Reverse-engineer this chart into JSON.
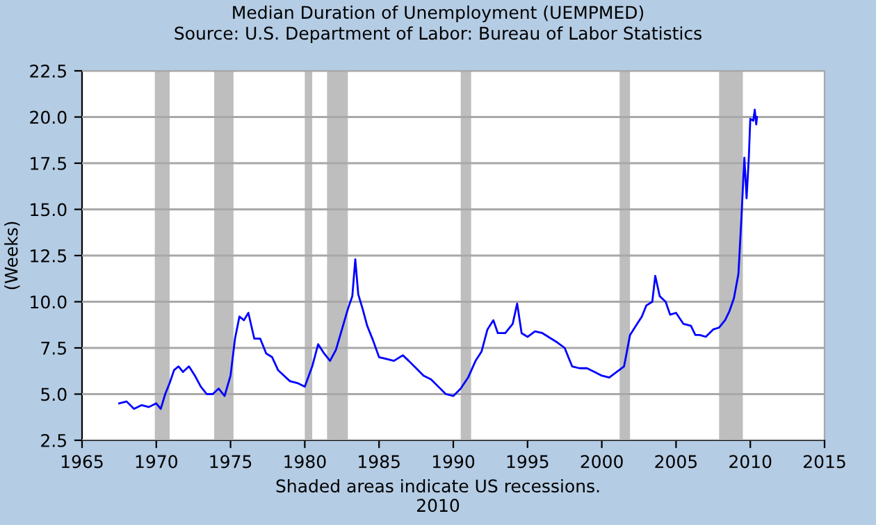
{
  "chart_data": {
    "type": "line",
    "title": "Median Duration of Unemployment (UEMPMED)",
    "subtitle": "Source: U.S. Department of Labor: Bureau of Labor Statistics",
    "ylabel": "(Weeks)",
    "annotations": [
      "Shaded areas indicate US recessions.",
      "2010"
    ],
    "xlim": [
      1965,
      2015
    ],
    "xticks": [
      1965,
      1970,
      1975,
      1980,
      1985,
      1990,
      1995,
      2000,
      2005,
      2010,
      2015
    ],
    "ylim": [
      2.5,
      22.5
    ],
    "yticks": [
      2.5,
      {
        "value": 5,
        "label": "5.0"
      },
      7.5,
      {
        "value": 10,
        "label": "10.0"
      },
      12.5,
      {
        "value": 15,
        "label": "15.0"
      },
      17.5,
      {
        "value": 20,
        "label": "20.0"
      },
      22.5
    ],
    "grid": "y",
    "legend": false,
    "bands": [
      {
        "axis": "x",
        "from": 1969.9,
        "to": 1970.9,
        "color": "#bebebe"
      },
      {
        "axis": "x",
        "from": 1973.9,
        "to": 1975.2,
        "color": "#bebebe"
      },
      {
        "axis": "x",
        "from": 1980.0,
        "to": 1980.5,
        "color": "#bebebe"
      },
      {
        "axis": "x",
        "from": 1981.5,
        "to": 1982.9,
        "color": "#bebebe"
      },
      {
        "axis": "x",
        "from": 1990.5,
        "to": 1991.2,
        "color": "#bebebe"
      },
      {
        "axis": "x",
        "from": 2001.2,
        "to": 2001.9,
        "color": "#bebebe"
      },
      {
        "axis": "x",
        "from": 2007.9,
        "to": 2009.5,
        "color": "#bebebe"
      }
    ],
    "series": [
      {
        "color": "#0000ff",
        "x": [
          1967.5,
          1968,
          1968.5,
          1969,
          1969.5,
          1970,
          1970.3,
          1970.6,
          1970.9,
          1971.2,
          1971.5,
          1971.8,
          1972.2,
          1972.6,
          1973,
          1973.4,
          1973.8,
          1974.2,
          1974.6,
          1975,
          1975.3,
          1975.6,
          1975.9,
          1976.2,
          1976.6,
          1977,
          1977.4,
          1977.8,
          1978.2,
          1978.6,
          1979,
          1979.5,
          1980,
          1980.5,
          1980.9,
          1981.3,
          1981.7,
          1982.1,
          1982.5,
          1982.9,
          1983.2,
          1983.4,
          1983.6,
          1983.9,
          1984.2,
          1984.6,
          1985,
          1985.5,
          1986,
          1986.6,
          1987,
          1987.5,
          1988,
          1988.5,
          1989,
          1989.5,
          1990,
          1990.5,
          1991,
          1991.5,
          1991.9,
          1992.3,
          1992.7,
          1993,
          1993.5,
          1994,
          1994.3,
          1994.6,
          1995,
          1995.5,
          1996,
          1996.6,
          1997,
          1997.5,
          1998,
          1998.5,
          1999,
          1999.5,
          2000,
          2000.5,
          2001,
          2001.5,
          2001.9,
          2002.3,
          2002.7,
          2003,
          2003.4,
          2003.6,
          2003.9,
          2004.3,
          2004.6,
          2005,
          2005.5,
          2006,
          2006.3,
          2006.6,
          2007,
          2007.5,
          2007.9,
          2008.3,
          2008.6,
          2008.9,
          2009.2,
          2009.4,
          2009.6,
          2009.75,
          2009.9,
          2010.0,
          2010.2,
          2010.3,
          2010.4,
          2010.45
        ],
        "values": [
          4.5,
          4.6,
          4.2,
          4.4,
          4.3,
          4.5,
          4.2,
          5.0,
          5.6,
          6.3,
          6.5,
          6.2,
          6.5,
          6.0,
          5.4,
          5.0,
          5.0,
          5.3,
          4.9,
          6.0,
          8.0,
          9.2,
          9.0,
          9.4,
          8.0,
          8.0,
          7.2,
          7.0,
          6.3,
          6.0,
          5.7,
          5.6,
          5.4,
          6.5,
          7.7,
          7.2,
          6.8,
          7.4,
          8.5,
          9.6,
          10.3,
          12.3,
          10.4,
          9.6,
          8.7,
          7.9,
          7.0,
          6.9,
          6.8,
          7.1,
          6.8,
          6.4,
          6.0,
          5.8,
          5.4,
          5.0,
          4.9,
          5.3,
          5.9,
          6.8,
          7.3,
          8.5,
          9.0,
          8.3,
          8.3,
          8.8,
          9.9,
          8.3,
          8.1,
          8.4,
          8.3,
          8.0,
          7.8,
          7.5,
          6.5,
          6.4,
          6.4,
          6.2,
          6.0,
          5.9,
          6.2,
          6.5,
          8.2,
          8.7,
          9.2,
          9.8,
          10.0,
          11.4,
          10.3,
          10.0,
          9.3,
          9.4,
          8.8,
          8.7,
          8.2,
          8.2,
          8.1,
          8.5,
          8.6,
          9.0,
          9.5,
          10.2,
          11.5,
          14.5,
          17.8,
          15.6,
          17.8,
          19.9,
          19.8,
          20.4,
          19.6,
          20.0
        ]
      }
    ]
  }
}
